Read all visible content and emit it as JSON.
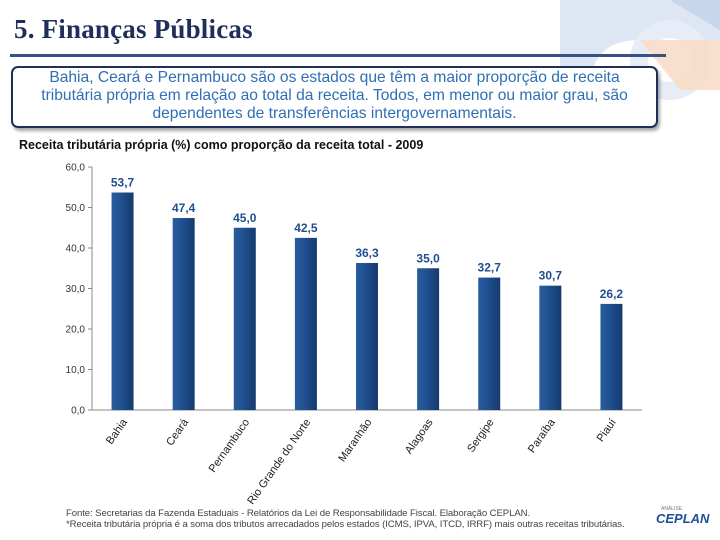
{
  "header": {
    "title": "5. Finanças Públicas"
  },
  "callout": {
    "text": "Bahia, Ceará e Pernambuco são os estados que têm a maior proporção de receita tributária própria  em relação ao total da receita. Todos, em menor ou maior grau, são dependentes de transferências intergovernamentais."
  },
  "chart_data": {
    "type": "bar",
    "title": "Receita tributária própria (%) como proporção da receita total - 2009",
    "categories": [
      "Bahia",
      "Ceará",
      "Pernambuco",
      "Rio Grande do Norte",
      "Maranhão",
      "Alagoas",
      "Sergipe",
      "Paraíba",
      "Piauí"
    ],
    "values": [
      53.7,
      47.4,
      45.0,
      42.5,
      36.3,
      35.0,
      32.7,
      30.7,
      26.2
    ],
    "value_labels": [
      "53,7",
      "47,4",
      "45,0",
      "42,5",
      "36,3",
      "35,0",
      "32,7",
      "30,7",
      "26,2"
    ],
    "yticks": [
      "0,0",
      "10,0",
      "20,0",
      "30,0",
      "40,0",
      "50,0",
      "60,0"
    ],
    "ylim": [
      0,
      60
    ],
    "xlabel": "",
    "ylabel": "",
    "bar_color": "#1f4f8f",
    "label_color": "#1f4f8f"
  },
  "footer": {
    "source": "Fonte: Secretarias da Fazenda Estaduais - Relatórios da Lei de Responsabilidade Fiscal. Elaboração CEPLAN.",
    "note": "*Receita tributária própria é a soma dos tributos arrecadados pelos estados (ICMS, IPVA, ITCD, IRRF) mais outras receitas tributárias."
  },
  "brand": {
    "name": "CEPLAN",
    "tagline": "ANÁLISE"
  }
}
